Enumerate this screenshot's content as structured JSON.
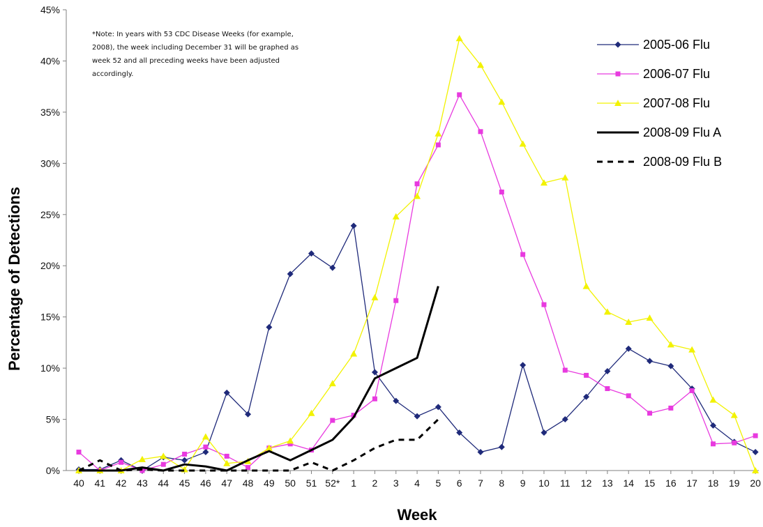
{
  "chart_data": {
    "type": "line",
    "title": "",
    "xlabel": "Week",
    "ylabel": "Percentage of Detections",
    "ylim": [
      0,
      45
    ],
    "y_ticks": [
      "0%",
      "5%",
      "10%",
      "15%",
      "20%",
      "25%",
      "30%",
      "35%",
      "40%",
      "45%"
    ],
    "categories": [
      "40",
      "41",
      "42",
      "43",
      "44",
      "45",
      "46",
      "47",
      "48",
      "49",
      "50",
      "51",
      "52*",
      "1",
      "2",
      "3",
      "4",
      "5",
      "6",
      "7",
      "8",
      "9",
      "10",
      "11",
      "12",
      "13",
      "14",
      "15",
      "16",
      "17",
      "18",
      "19",
      "20"
    ],
    "grid": false,
    "legend_position": "top-right",
    "note_lines": [
      "*Note: In years with 53 CDC Disease Weeks (for example,",
      "2008), the week including December 31 will be graphed as",
      "week 52 and all preceding weeks have been adjusted",
      "accordingly."
    ],
    "series": [
      {
        "name": "2005-06 Flu",
        "color": "#1f2a7a",
        "marker": "diamond",
        "dash": "solid",
        "values": [
          0.1,
          0.1,
          1.0,
          0.0,
          1.3,
          1.0,
          1.8,
          7.6,
          5.5,
          14.0,
          19.2,
          21.2,
          19.8,
          23.9,
          9.6,
          6.8,
          5.3,
          6.2,
          3.7,
          1.8,
          2.3,
          10.3,
          3.7,
          5.0,
          7.2,
          9.7,
          11.9,
          10.7,
          10.2,
          8.0,
          4.4,
          2.8,
          1.8
        ]
      },
      {
        "name": "2006-07 Flu",
        "color": "#e83adf",
        "marker": "square",
        "dash": "solid",
        "values": [
          1.8,
          0.0,
          0.8,
          0.0,
          0.6,
          1.6,
          2.3,
          1.4,
          0.3,
          2.2,
          2.6,
          2.0,
          4.9,
          5.4,
          7.0,
          16.6,
          28.0,
          31.8,
          36.7,
          33.1,
          27.2,
          21.1,
          16.2,
          9.8,
          9.3,
          8.0,
          7.3,
          5.6,
          6.1,
          7.8,
          2.6,
          2.7,
          3.4
        ]
      },
      {
        "name": "2007-08 Flu",
        "color": "#f2f200",
        "marker": "triangle",
        "dash": "solid",
        "values": [
          0.0,
          0.0,
          0.0,
          1.1,
          1.4,
          0.1,
          3.3,
          0.7,
          0.9,
          2.2,
          2.9,
          5.6,
          8.5,
          11.4,
          16.9,
          24.8,
          26.8,
          32.9,
          42.2,
          39.6,
          36.0,
          31.9,
          28.1,
          28.6,
          18.0,
          15.5,
          14.5,
          14.9,
          12.3,
          11.8,
          6.9,
          5.4,
          0.0
        ]
      },
      {
        "name": "2008-09 Flu A",
        "color": "#000000",
        "marker": "none",
        "dash": "solid",
        "values": [
          0.0,
          0.0,
          0.0,
          0.3,
          0.0,
          0.6,
          0.4,
          0.0,
          1.0,
          1.9,
          1.0,
          2.0,
          3.0,
          5.2,
          9.0,
          10.0,
          11.0,
          18.0,
          null,
          null,
          null,
          null,
          null,
          null,
          null,
          null,
          null,
          null,
          null,
          null,
          null,
          null,
          null
        ]
      },
      {
        "name": "2008-09 Flu B",
        "color": "#000000",
        "marker": "none",
        "dash": "dashed",
        "values": [
          0.0,
          1.0,
          0.0,
          0.1,
          0.0,
          0.0,
          0.0,
          0.0,
          0.0,
          0.0,
          0.0,
          0.8,
          0.0,
          1.0,
          2.2,
          3.0,
          3.0,
          5.0,
          null,
          null,
          null,
          null,
          null,
          null,
          null,
          null,
          null,
          null,
          null,
          null,
          null,
          null,
          null
        ]
      }
    ]
  }
}
